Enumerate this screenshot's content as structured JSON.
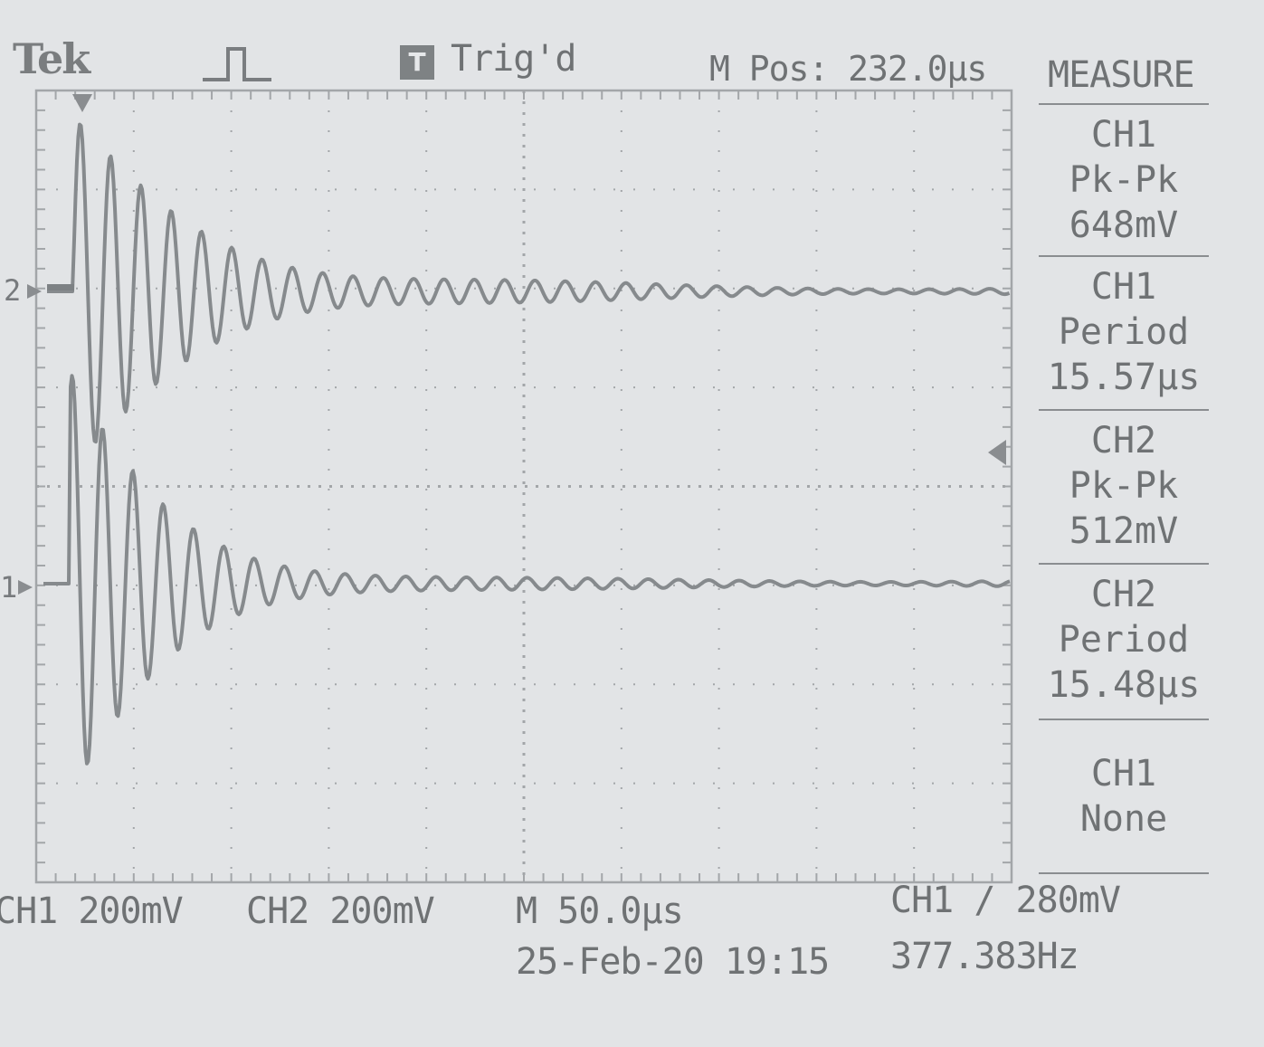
{
  "header": {
    "brand": "Tek",
    "trigger_icon_letter": "T",
    "trigger_status": "Trig'd",
    "mpos": "M Pos: 232.0µs"
  },
  "measure": {
    "title": "MEASURE",
    "items": [
      {
        "channel": "CH1",
        "type": "Pk-Pk",
        "value": "648mV"
      },
      {
        "channel": "CH1",
        "type": "Period",
        "value": "15.57µs"
      },
      {
        "channel": "CH2",
        "type": "Pk-Pk",
        "value": "512mV"
      },
      {
        "channel": "CH2",
        "type": "Period",
        "value": "15.48µs"
      },
      {
        "channel": "CH1",
        "type": "None",
        "value": ""
      }
    ]
  },
  "markers": {
    "ch2": "2",
    "ch1": "1"
  },
  "footer": {
    "ch1_scale": "CH1  200mV",
    "ch2_scale": "CH2  200mV",
    "timebase": "M 50.0µs",
    "trigger": "CH1 ∕ 280mV",
    "datetime": "25-Feb-20 19:15",
    "frequency": "377.383Hz"
  },
  "colors": {
    "trace": "#8a8d90",
    "grid": "#a9acaf",
    "background": "#e2e4e6"
  }
}
